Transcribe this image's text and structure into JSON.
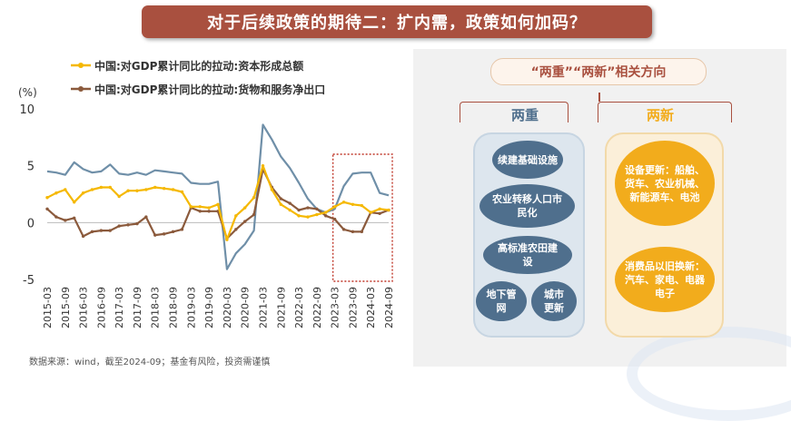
{
  "title": "对于后续政策的期待二：扩内需，政策如何加码？",
  "source": "数据来源：wind，截至2024-09；基金有风险，投资需谨慎",
  "chart_data": {
    "type": "line",
    "ylabel": "(%)",
    "ylim": [
      -5,
      10
    ],
    "yticks": [
      10,
      5,
      0,
      -5
    ],
    "x_tick_labels": [
      "2015-03",
      "2015-09",
      "2016-03",
      "2016-09",
      "2017-03",
      "2017-09",
      "2018-03",
      "2018-09",
      "2019-03",
      "2019-09",
      "2020-03",
      "2020-09",
      "2021-03",
      "2021-09",
      "2022-03",
      "2022-09",
      "2023-03",
      "2023-09",
      "2024-03",
      "2024-09"
    ],
    "x": [
      "2015-03",
      "2015-06",
      "2015-09",
      "2015-12",
      "2016-03",
      "2016-06",
      "2016-09",
      "2016-12",
      "2017-03",
      "2017-06",
      "2017-09",
      "2017-12",
      "2018-03",
      "2018-06",
      "2018-09",
      "2018-12",
      "2019-03",
      "2019-06",
      "2019-09",
      "2019-12",
      "2020-03",
      "2020-06",
      "2020-09",
      "2020-12",
      "2021-03",
      "2021-06",
      "2021-09",
      "2021-12",
      "2022-03",
      "2022-06",
      "2022-09",
      "2022-12",
      "2023-03",
      "2023-06",
      "2023-09",
      "2023-12",
      "2024-03",
      "2024-06",
      "2024-09"
    ],
    "series": [
      {
        "name": "中国:对GDP累计同比的拉动:资本形成总额",
        "color": "#f5b800",
        "values": [
          2.2,
          2.6,
          2.9,
          1.8,
          2.6,
          2.9,
          3.1,
          3.1,
          2.3,
          2.8,
          2.8,
          2.9,
          3.1,
          3.0,
          2.9,
          2.7,
          1.4,
          1.4,
          1.3,
          1.6,
          -1.5,
          0.6,
          1.3,
          2.2,
          5.0,
          2.9,
          1.6,
          1.1,
          0.6,
          0.5,
          0.7,
          0.9,
          1.4,
          1.8,
          1.6,
          1.5,
          0.9,
          1.2,
          1.1
        ]
      },
      {
        "name": "中国:对GDP累计同比的拉动:货物和服务净出口",
        "color": "#8b5a3c",
        "values": [
          1.2,
          0.5,
          0.2,
          0.4,
          -1.2,
          -0.8,
          -0.7,
          -0.7,
          -0.3,
          -0.2,
          -0.1,
          0.5,
          -1.1,
          -1.0,
          -0.8,
          -0.6,
          1.3,
          1.0,
          1.0,
          1.0,
          -1.4,
          -0.6,
          0.1,
          0.7,
          4.7,
          3.1,
          2.1,
          1.7,
          1.1,
          1.3,
          1.2,
          0.6,
          0.3,
          -0.6,
          -0.8,
          -0.8,
          0.9,
          0.8,
          1.1
        ]
      },
      {
        "name": "",
        "color": "#6f8fa8",
        "values": [
          4.5,
          4.4,
          4.2,
          5.3,
          4.7,
          4.4,
          4.5,
          5.1,
          4.3,
          4.2,
          4.4,
          4.2,
          4.6,
          4.5,
          4.4,
          4.3,
          3.5,
          3.4,
          3.4,
          3.6,
          -4.1,
          -2.7,
          -1.9,
          -0.7,
          8.6,
          7.3,
          5.8,
          4.8,
          3.5,
          2.1,
          1.2,
          0.9,
          1.2,
          3.2,
          4.3,
          4.4,
          4.4,
          2.6,
          2.4
        ]
      }
    ],
    "highlight_range": [
      "2023-03",
      "2024-09"
    ]
  },
  "panel": {
    "title": "“两重”“两新”相关方向",
    "left_heading": "两重",
    "right_heading": "两新",
    "left_items": [
      "续建基础设施",
      "农业转移人口市民化",
      "高标准农田建设",
      "地下管网",
      "城市更新"
    ],
    "right_items": [
      "设备更新：船舶、货车、农业机械、新能源车、电池",
      "消费品以旧换新：汽车、家电、电器电子"
    ]
  },
  "colors": {
    "brand": "#a9503f",
    "blue": "#4f6f8d",
    "orange": "#f2ac1c"
  }
}
